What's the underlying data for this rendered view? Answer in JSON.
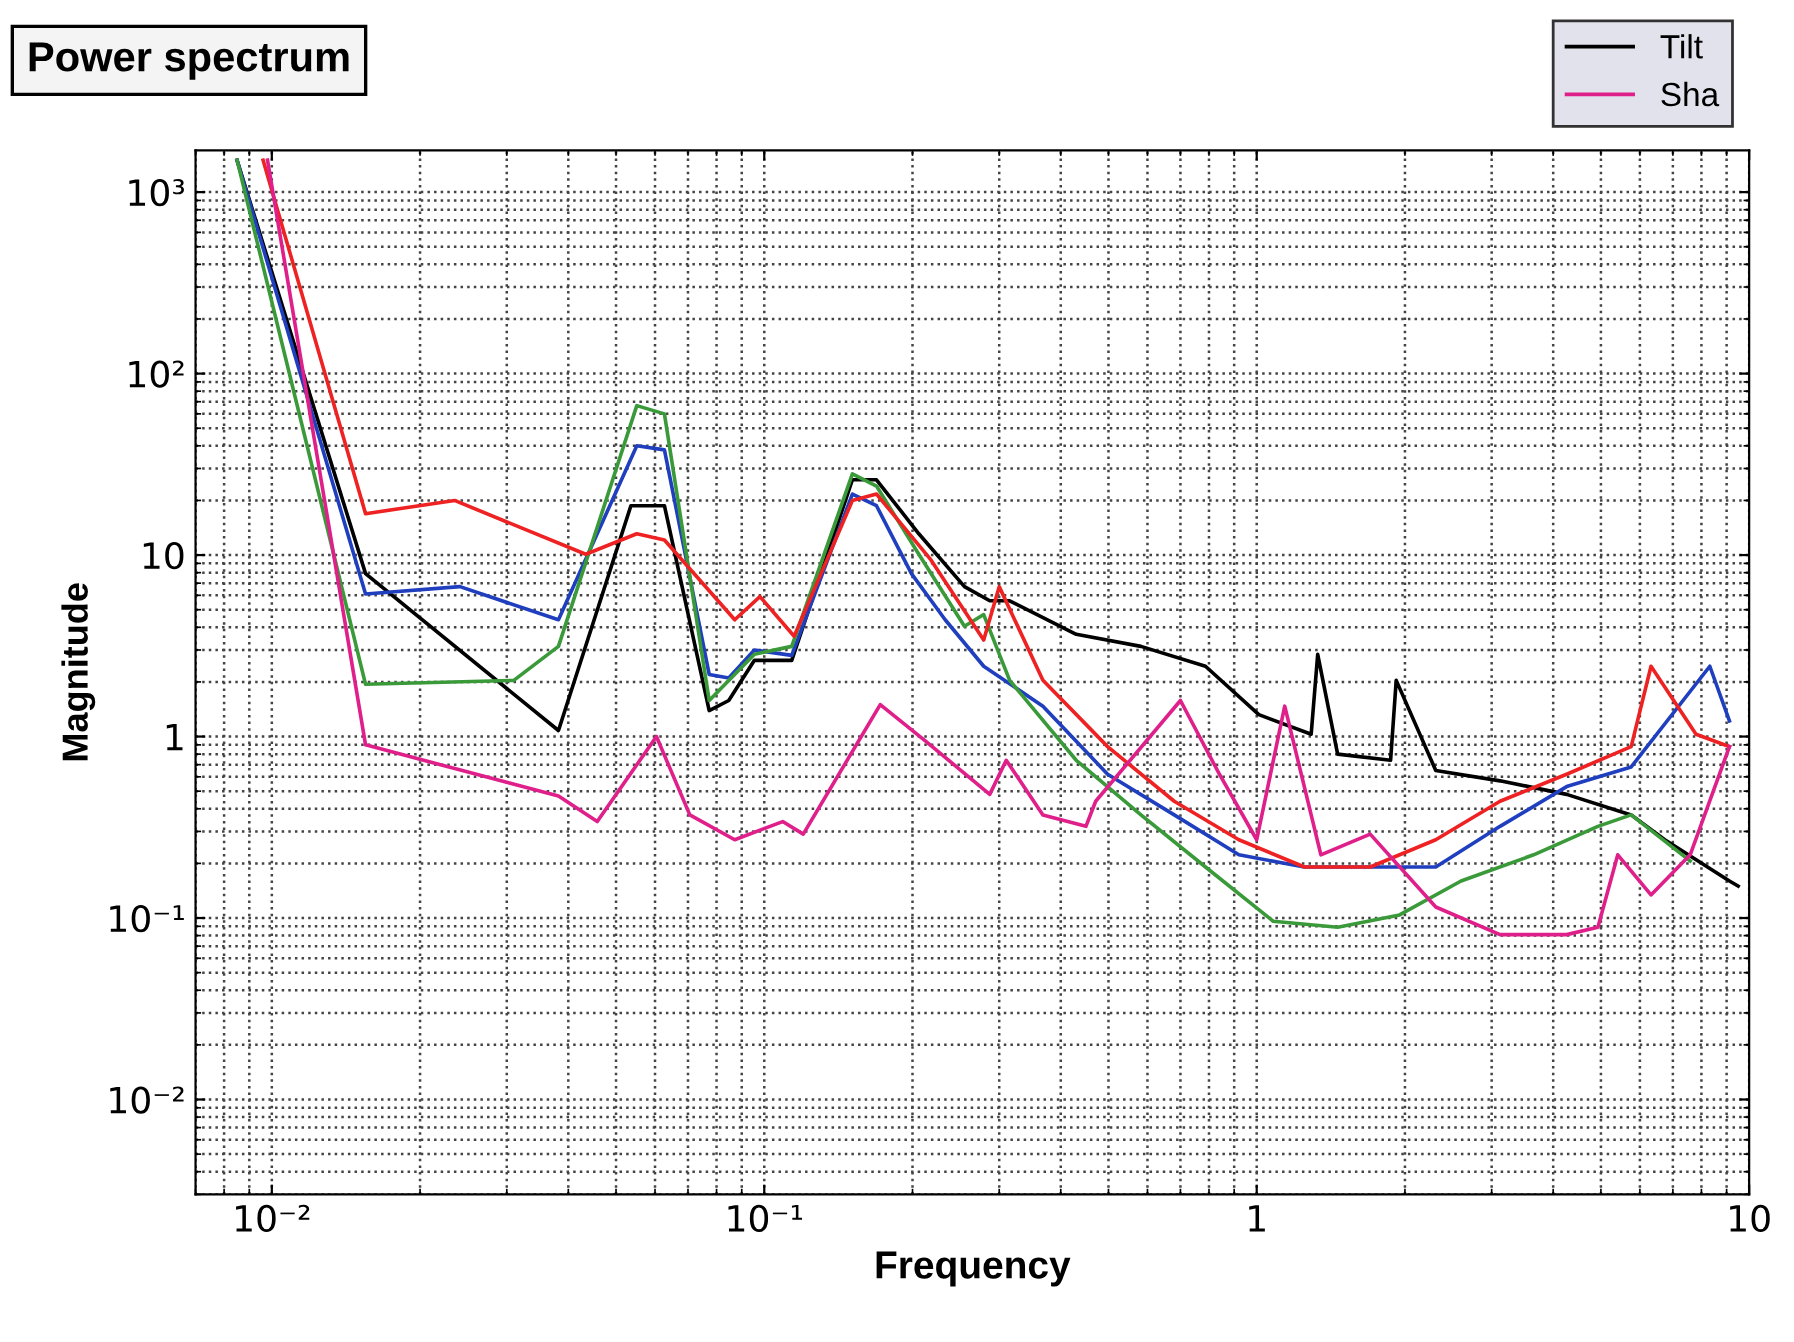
{
  "chart_data": {
    "type": "line",
    "title": "Power spectrum",
    "xlabel": "Frequency",
    "ylabel": "Magnitude",
    "log": "xy",
    "grid": true,
    "legend": "top right",
    "line_style": "solid",
    "xlim": [
      0.007,
      10
    ],
    "ylim": [
      0.003,
      1700
    ],
    "xticks": [
      {
        "value": 0.01,
        "label": "10⁻²"
      },
      {
        "value": 0.1,
        "label": "10⁻¹"
      },
      1,
      10
    ],
    "yticks": [
      {
        "value": 0.01,
        "label": "10⁻²"
      },
      {
        "value": 0.1,
        "label": "10⁻¹"
      },
      1,
      10,
      {
        "value": 100,
        "label": "10²"
      },
      {
        "value": 1000,
        "label": "10³"
      }
    ],
    "series": [
      {
        "name": "Tilt",
        "color": "#000000",
        "x": [
          0.0085,
          0.0155,
          0.0382,
          0.0536,
          0.0627,
          0.0773,
          0.0847,
          0.0955,
          0.1137,
          0.151,
          0.169,
          0.206,
          0.255,
          0.287,
          0.315,
          0.43,
          0.582,
          0.787,
          1.01,
          1.29,
          1.33,
          1.46,
          1.87,
          1.92,
          2.31,
          3.12,
          4.26,
          5.76,
          6.74,
          9.12,
          9.5
        ],
        "values": [
          1500,
          7.9,
          1.08,
          18.7,
          18.7,
          1.39,
          1.58,
          2.63,
          2.63,
          26,
          26,
          13.1,
          6.7,
          5.6,
          5.6,
          3.66,
          3.14,
          2.44,
          1.32,
          1.03,
          2.84,
          0.8,
          0.74,
          2.04,
          0.65,
          0.57,
          0.48,
          0.37,
          0.27,
          0.16,
          0.15
        ]
      },
      {
        "color": "#1f3fbf",
        "x": [
          0.0085,
          0.0155,
          0.0241,
          0.0382,
          0.0551,
          0.0627,
          0.0773,
          0.0847,
          0.0955,
          0.1137,
          0.151,
          0.169,
          0.199,
          0.233,
          0.279,
          0.368,
          0.498,
          0.68,
          0.92,
          1.25,
          1.7,
          2.31,
          3.12,
          4.26,
          5.76,
          8.32,
          9.12
        ],
        "values": [
          1500,
          6.1,
          6.7,
          4.4,
          40,
          38,
          2.2,
          2.1,
          3.0,
          2.8,
          21.7,
          18.7,
          7.9,
          4.4,
          2.44,
          1.47,
          0.62,
          0.37,
          0.223,
          0.191,
          0.191,
          0.191,
          0.32,
          0.53,
          0.68,
          2.44,
          1.22
        ]
      },
      {
        "color": "#3a9a3a",
        "x": [
          0.0085,
          0.0155,
          0.031,
          0.0382,
          0.0551,
          0.0627,
          0.0773,
          0.0955,
          0.1137,
          0.151,
          0.169,
          0.206,
          0.255,
          0.279,
          0.315,
          0.43,
          0.582,
          0.787,
          1.08,
          1.46,
          1.95,
          2.6,
          3.65,
          4.93,
          5.76,
          7.59
        ],
        "values": [
          1500,
          1.94,
          2.04,
          3.14,
          66.6,
          60,
          1.58,
          2.84,
          3.14,
          28,
          24,
          10.1,
          4.05,
          4.7,
          2.04,
          0.74,
          0.37,
          0.191,
          0.096,
          0.089,
          0.104,
          0.16,
          0.223,
          0.32,
          0.37,
          0.206
        ]
      },
      {
        "color": "#ee2222",
        "x": [
          0.0096,
          0.0155,
          0.0235,
          0.0434,
          0.0551,
          0.0627,
          0.0871,
          0.098,
          0.115,
          0.151,
          0.169,
          0.218,
          0.279,
          0.3,
          0.368,
          0.498,
          0.68,
          0.92,
          1.25,
          1.7,
          2.31,
          3.12,
          4.26,
          5.76,
          6.32,
          7.8,
          9.12
        ],
        "values": [
          1500,
          16.9,
          20,
          10.1,
          13.1,
          12.1,
          4.4,
          5.9,
          3.57,
          20,
          21.7,
          9.4,
          3.4,
          6.7,
          2.04,
          0.88,
          0.44,
          0.27,
          0.191,
          0.191,
          0.27,
          0.44,
          0.62,
          0.88,
          2.44,
          1.03,
          0.88
        ]
      },
      {
        "name": "Sha",
        "color": "#e0208a",
        "x": [
          0.0098,
          0.0155,
          0.0382,
          0.0458,
          0.0604,
          0.0706,
          0.0871,
          0.109,
          0.12,
          0.172,
          0.212,
          0.287,
          0.31,
          0.368,
          0.45,
          0.471,
          0.7,
          0.84,
          1.0,
          1.14,
          1.35,
          1.7,
          2.31,
          3.12,
          4.26,
          4.93,
          5.41,
          6.32,
          7.59,
          9.12
        ],
        "values": [
          1500,
          0.9,
          0.47,
          0.34,
          1.0,
          0.37,
          0.27,
          0.34,
          0.29,
          1.5,
          0.95,
          0.48,
          0.74,
          0.37,
          0.32,
          0.44,
          1.58,
          0.62,
          0.27,
          1.47,
          0.223,
          0.29,
          0.115,
          0.081,
          0.081,
          0.089,
          0.223,
          0.134,
          0.223,
          0.88
        ]
      }
    ]
  }
}
